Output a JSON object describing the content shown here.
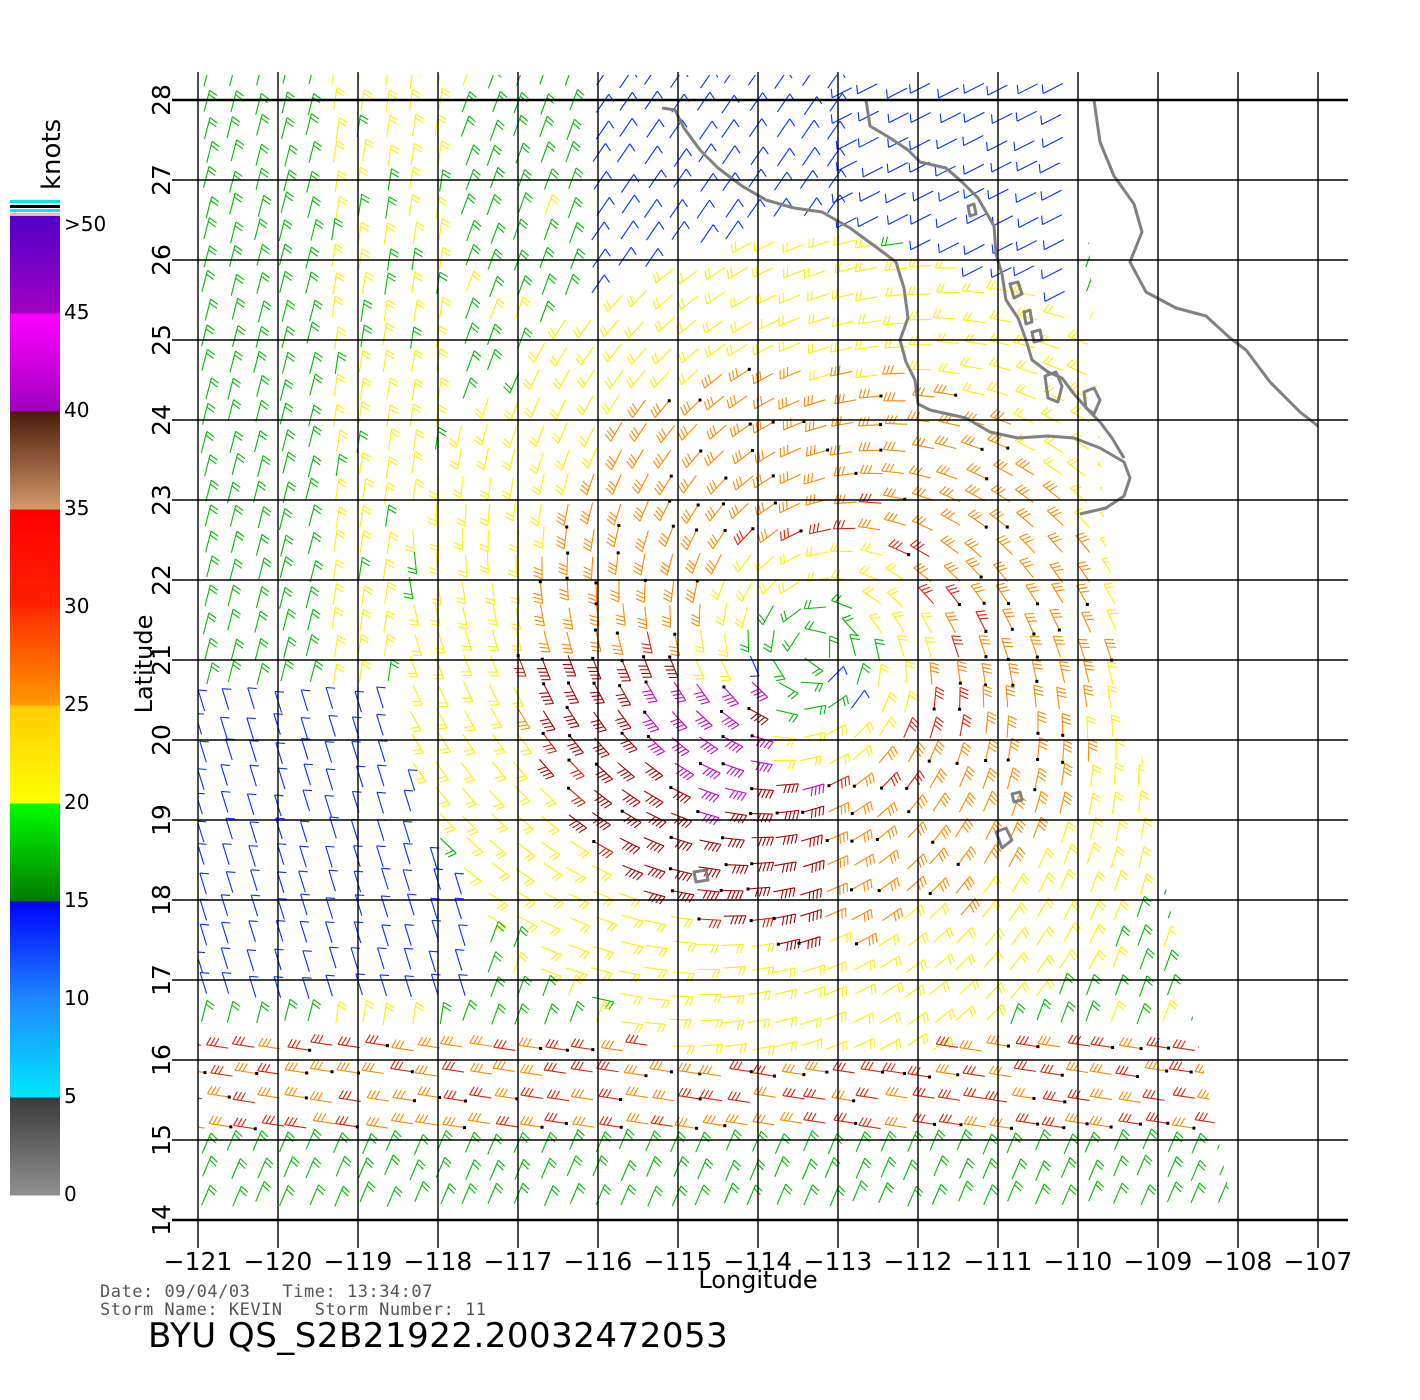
{
  "colorbar": {
    "units": "knots",
    "bands": [
      {
        "from": 0,
        "to": 5,
        "top": "#3a3a3a",
        "bottom": "#909090"
      },
      {
        "from": 5,
        "to": 10,
        "top": "#1e88ff",
        "bottom": "#00e6ff"
      },
      {
        "from": 10,
        "to": 15,
        "top": "#0000ff",
        "bottom": "#1e88ff"
      },
      {
        "from": 15,
        "to": 20,
        "top": "#00ff00",
        "bottom": "#007a00"
      },
      {
        "from": 20,
        "to": 25,
        "top": "#ffcc00",
        "bottom": "#ffff00"
      },
      {
        "from": 25,
        "to": 30,
        "top": "#ff2a00",
        "bottom": "#ff9900"
      },
      {
        "from": 30,
        "to": 35,
        "top": "#ff0000",
        "bottom": "#ff2200"
      },
      {
        "from": 35,
        "to": 40,
        "top": "#4a1a0a",
        "bottom": "#d49a6a"
      },
      {
        "from": 40,
        "to": 45,
        "top": "#ff00ff",
        "bottom": "#a000c0"
      },
      {
        "from": 45,
        "to": 50,
        "top": "#5000c8",
        "bottom": "#a000c0"
      }
    ],
    "tick_labels": [
      "0",
      "5",
      "10",
      "15",
      "20",
      "25",
      "30",
      "35",
      "40",
      "45",
      ">50"
    ]
  },
  "map": {
    "xlabel": "Longitude",
    "ylabel": "Latitude",
    "lon_range": [
      -121,
      -107
    ],
    "lat_range": [
      14,
      28
    ],
    "lon_ticks": [
      -121,
      -120,
      -119,
      -118,
      -117,
      -116,
      -115,
      -114,
      -113,
      -112,
      -111,
      -110,
      -109,
      -108,
      -107
    ],
    "lon_tick_labels": [
      "−121",
      "−120",
      "−119",
      "−118",
      "−117",
      "−116",
      "−115",
      "−114",
      "−113",
      "−112",
      "−111",
      "−110",
      "−109",
      "−108",
      "−107"
    ],
    "lat_ticks": [
      14,
      15,
      16,
      17,
      18,
      19,
      20,
      21,
      22,
      23,
      24,
      25,
      26,
      27,
      28
    ],
    "lat_tick_labels": [
      "14",
      "15",
      "16",
      "17",
      "18",
      "19",
      "20",
      "21",
      "22",
      "23",
      "24",
      "25",
      "26",
      "27",
      "28"
    ],
    "grid": true,
    "storm_center": {
      "lon": -113.3,
      "lat": 21.1
    },
    "wind_colors": {
      "0-5": "#555555",
      "5-10": "#00d8ff",
      "10-15": "#0033ff",
      "15-20": "#00bb00",
      "20-25": "#ffee00",
      "25-30": "#ff8800",
      "30-35": "#dd2200",
      "35-40": "#aa0000",
      "40-45": "#cc00cc"
    },
    "land_color": "#808080"
  },
  "footer": {
    "date_label": "Date:",
    "date": "09/04/03",
    "time_label": "Time:",
    "time": "13:34:07",
    "storm_name_label": "Storm Name:",
    "storm_name": "KEVIN",
    "storm_number_label": "Storm Number:",
    "storm_number": "11",
    "file_id": "BYU QS_S2B21922.20032472053"
  }
}
